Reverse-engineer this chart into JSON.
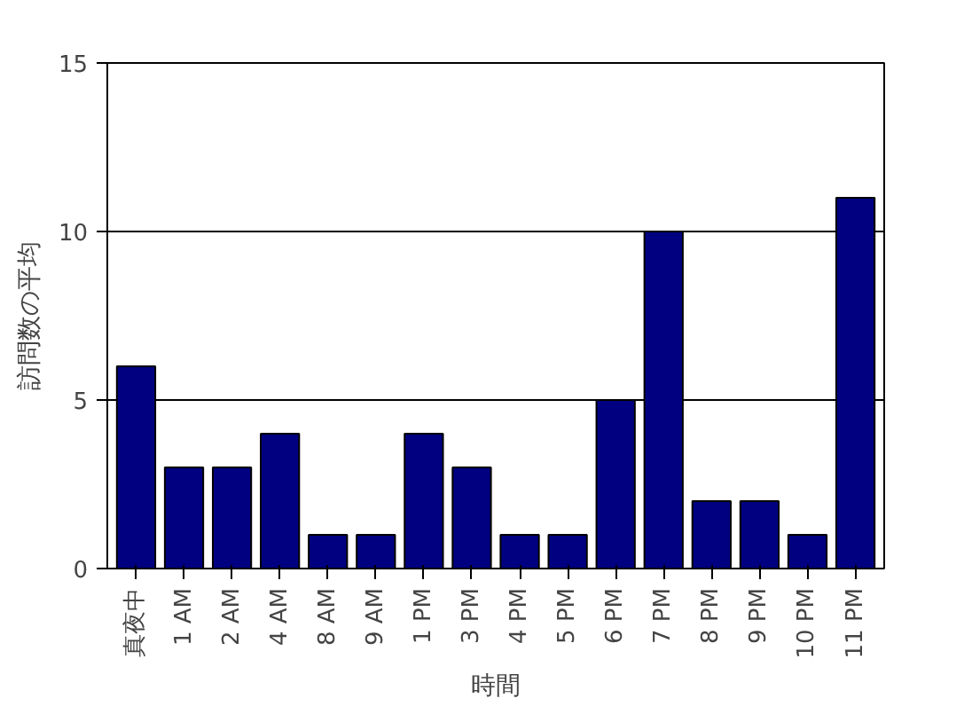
{
  "chart_data": {
    "type": "bar",
    "xlabel": "時間",
    "ylabel": "訪問数の平均",
    "categories": [
      "真夜中",
      "1 AM",
      "2 AM",
      "4 AM",
      "8 AM",
      "9 AM",
      "1 PM",
      "3 PM",
      "4 PM",
      "5 PM",
      "6 PM",
      "7 PM",
      "8 PM",
      "9 PM",
      "10 PM",
      "11 PM"
    ],
    "values": [
      6,
      3,
      3,
      4,
      1,
      1,
      4,
      3,
      1,
      1,
      5,
      10,
      2,
      2,
      1,
      11
    ],
    "color": "#000080",
    "ylim": [
      0,
      15
    ],
    "yticks": [
      0,
      5,
      10,
      15
    ],
    "grid": "y"
  }
}
